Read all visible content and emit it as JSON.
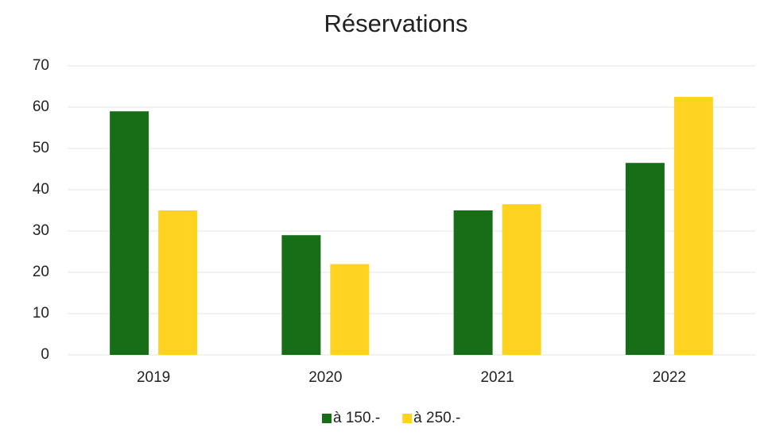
{
  "chart_data": {
    "type": "bar",
    "title": "Réservations",
    "categories": [
      "2019",
      "2020",
      "2021",
      "2022"
    ],
    "series": [
      {
        "name": "à 150.-",
        "color": "#176e17",
        "values": [
          59,
          29,
          35,
          46.5
        ]
      },
      {
        "name": "à 250.-",
        "color": "#ffd320",
        "values": [
          35,
          22,
          36.5,
          62.5
        ]
      }
    ],
    "ylim": [
      0,
      70
    ],
    "yticks": [
      0,
      10,
      20,
      30,
      40,
      50,
      60,
      70
    ],
    "grid": true,
    "legend": "bottom"
  }
}
